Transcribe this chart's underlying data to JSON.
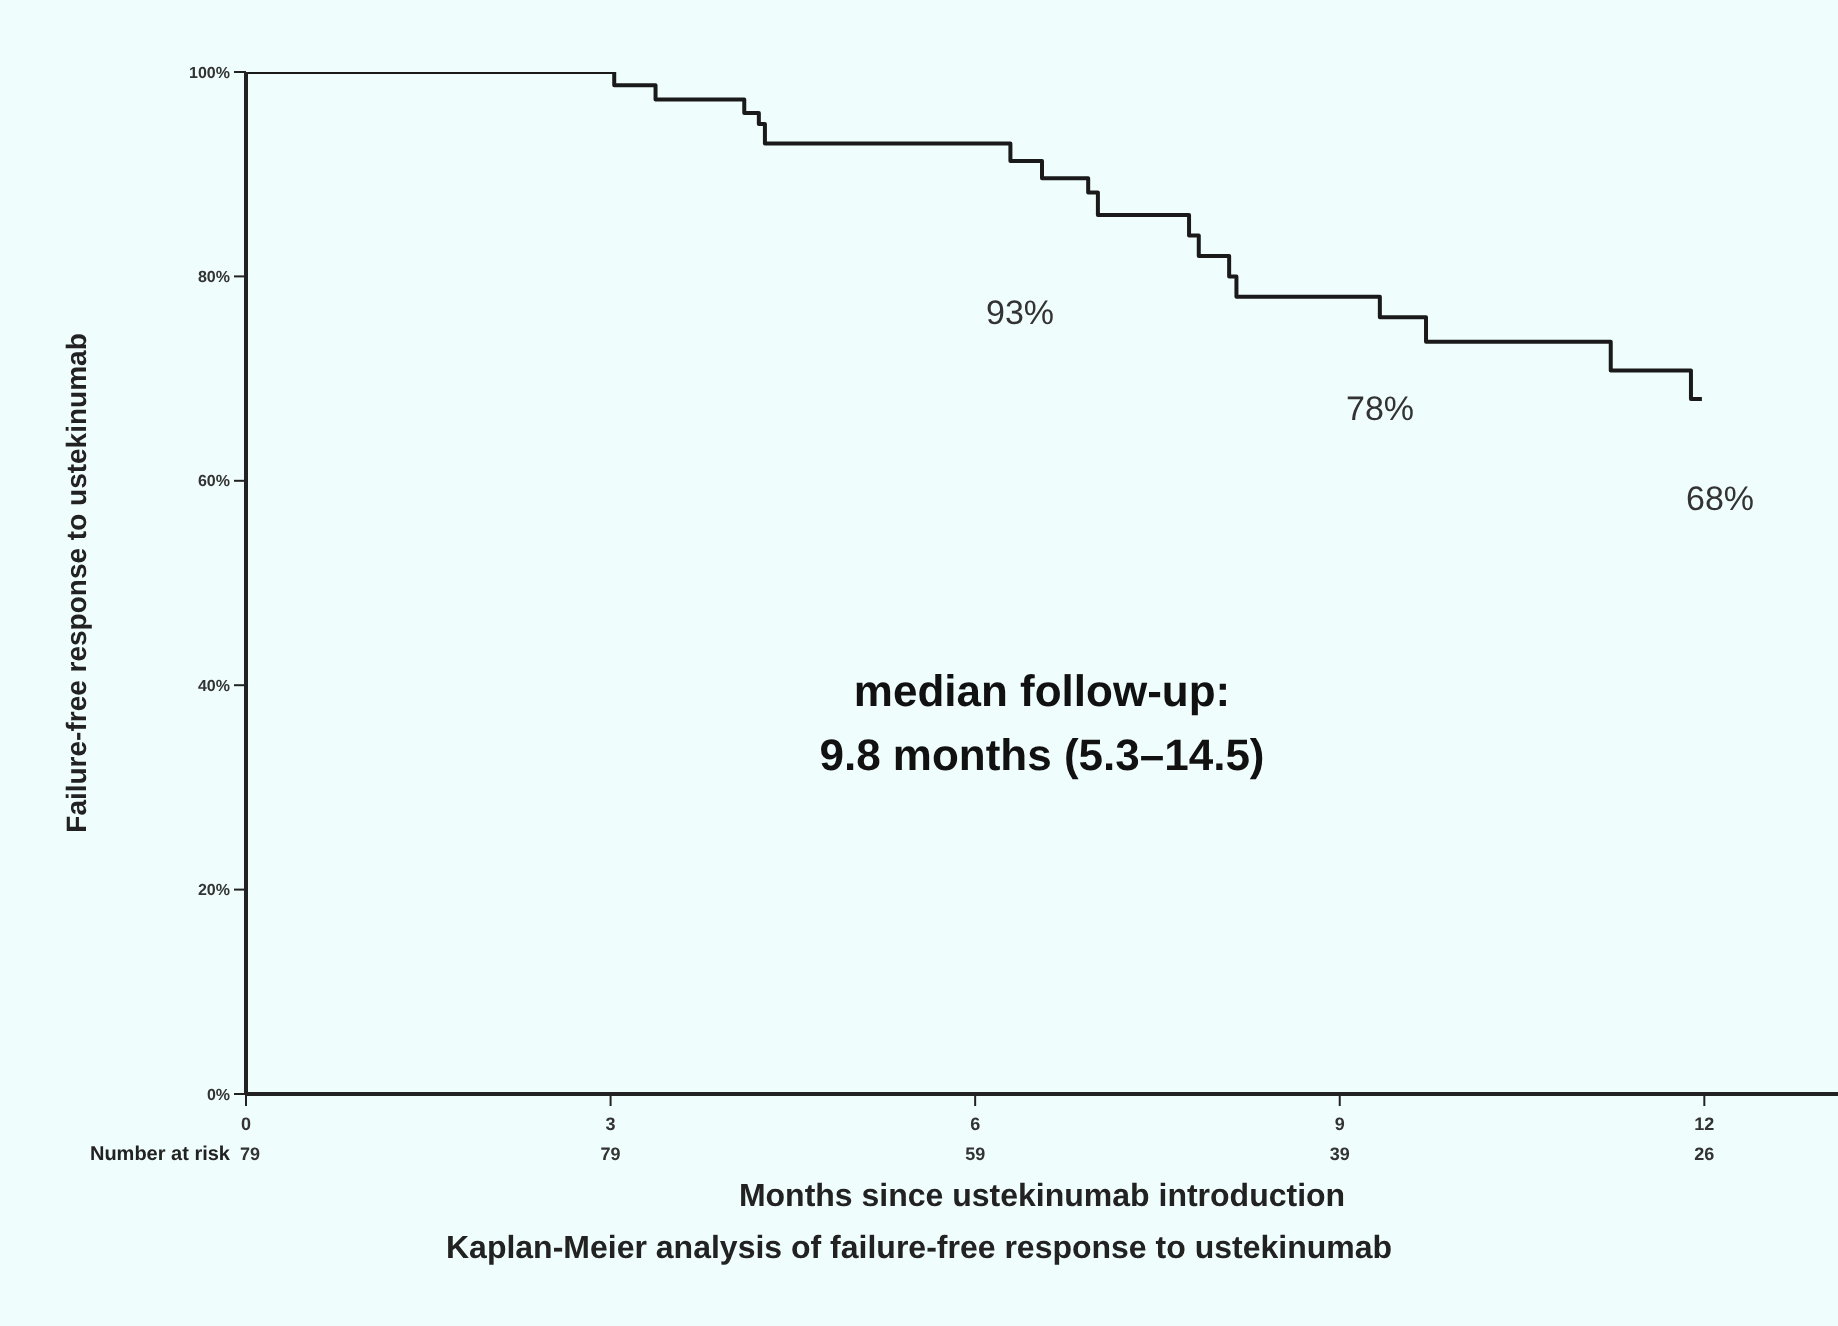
{
  "chart_data": {
    "type": "step",
    "title": "Kaplan-Meier analysis of failure-free response to ustekinumab",
    "xlabel": "Months since ustekinumab introduction",
    "ylabel": "Failure-free response to ustekinumab",
    "x": [
      0,
      3.03,
      3.37,
      4.1,
      4.22,
      4.27,
      6.29,
      6.55,
      6.93,
      7.01,
      7.76,
      7.84,
      8.09,
      8.15,
      9.33,
      9.71,
      11.23,
      11.89,
      11.98
    ],
    "series": [
      {
        "color": "#1a1a1a",
        "values": [
          100,
          98.7,
          97.3,
          96,
          94.9,
          93,
          91.3,
          89.6,
          88.2,
          86,
          84,
          82,
          80,
          78,
          76,
          73.6,
          70.8,
          68,
          68
        ]
      }
    ],
    "xlim": [
      0,
      13.1
    ],
    "xticks": [
      0,
      3,
      6,
      9,
      12
    ],
    "ylim": [
      0,
      100
    ],
    "yticks": [
      {
        "value": 0,
        "label": "0%"
      },
      {
        "value": 20,
        "label": "20%"
      },
      {
        "value": 40,
        "label": "40%"
      },
      {
        "value": 60,
        "label": "60%"
      },
      {
        "value": 80,
        "label": "80%"
      },
      {
        "value": 100,
        "label": "100%"
      }
    ],
    "grid": false,
    "legend": false,
    "marker": "none",
    "line_style": "solid",
    "annotations": [
      "Number at risk",
      "median follow-up:",
      "9.8 months (5.3–14.5)",
      "79",
      "79",
      "59",
      "39",
      "26",
      "93%",
      "78%",
      "68%"
    ]
  }
}
